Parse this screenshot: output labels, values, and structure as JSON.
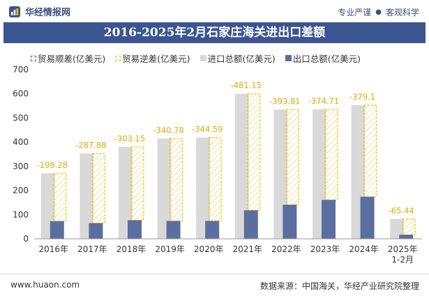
{
  "header": {
    "brand": "华经情报网",
    "slogan_left": "专业严谨",
    "slogan_right": "客观科学"
  },
  "chart_data": {
    "type": "bar",
    "title": "2016-2025年2月石家庄海关进出口差额",
    "categories": [
      "2016年",
      "2017年",
      "2018年",
      "2019年",
      "2020年",
      "2021年",
      "2022年",
      "2023年",
      "2024年",
      "2025年\n1-2月"
    ],
    "ylim": [
      0,
      700
    ],
    "yticks": [
      0,
      100,
      200,
      300,
      400,
      500,
      600,
      700
    ],
    "grid": false,
    "legend_position": "top",
    "series": [
      {
        "name": "贸易顺差(亿美元)",
        "values": [
          null,
          null,
          null,
          null,
          null,
          null,
          null,
          null,
          null,
          null
        ],
        "color": "#2e6fb5"
      },
      {
        "name": "贸易逆差(亿美元)",
        "values": [
          -198.28,
          -287.88,
          -303.15,
          -340.78,
          -344.59,
          -481.15,
          -393.81,
          -374.71,
          -379.1,
          -65.44
        ],
        "color": "#f5c400"
      },
      {
        "name": "进口总额(亿美元)",
        "values": [
          271,
          353,
          380,
          415,
          419,
          600,
          535,
          536,
          553,
          82
        ],
        "color": "#d9d9d9"
      },
      {
        "name": "出口总额(亿美元)",
        "values": [
          73,
          65,
          77,
          74,
          74,
          118,
          141,
          161,
          174,
          17
        ],
        "color": "#5a6fa0"
      }
    ],
    "data_labels": [
      "-198.28",
      "-287.88",
      "-303.15",
      "-340.78",
      "-344.59",
      "-481.15",
      "-393.81",
      "-374.71",
      "-379.1",
      "-65.44"
    ]
  },
  "footer": {
    "website": "www.huaon.com",
    "source": "数据来源：中国海关，华经产业研究院整理"
  }
}
